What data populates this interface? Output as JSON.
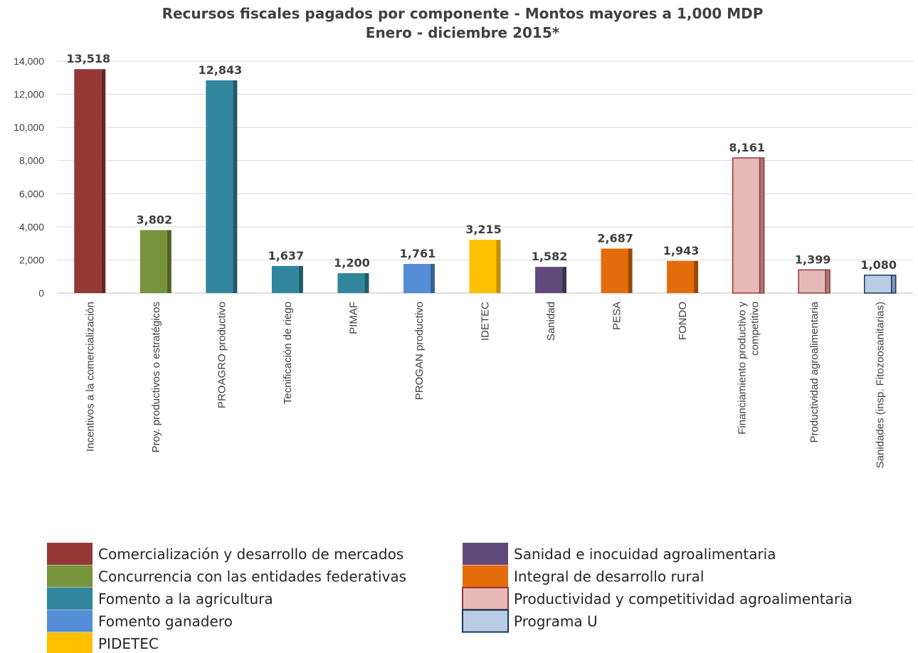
{
  "chart_data": {
    "type": "bar",
    "title": "Recursos fiscales pagados por componente - Montos mayores a 1,000 MDP",
    "subtitle": "Enero - diciembre 2015*",
    "ylim": [
      0,
      14000
    ],
    "yticks": [
      "0",
      "2,000",
      "4,000",
      "6,000",
      "8,000",
      "10,000",
      "12,000",
      "14,000"
    ],
    "grid": true,
    "legend_position": "bottom",
    "categories": [
      [
        "Incentivos a la comercialización"
      ],
      [
        "Proy. productivos o estratégicos"
      ],
      [
        "PROAGRO productivo"
      ],
      [
        "Tecnificación de riego"
      ],
      [
        "PIMAF"
      ],
      [
        "PROGAN productivo"
      ],
      [
        "IDETEC"
      ],
      [
        "Sanidad"
      ],
      [
        "PESA"
      ],
      [
        "FONDO"
      ],
      [
        "Financiamiento productivo y",
        "competitivo"
      ],
      [
        "Productividad agroalimentaria"
      ],
      [
        "Sanidades (insp. Fitozoosanitarias)"
      ]
    ],
    "values": [
      13518,
      3802,
      12843,
      1637,
      1200,
      1761,
      3215,
      1582,
      2687,
      1943,
      8161,
      1399,
      1080
    ],
    "value_labels": [
      "13,518",
      "3,802",
      "12,843",
      "1,637",
      "1,200",
      "1,761",
      "3,215",
      "1,582",
      "2,687",
      "1,943",
      "8,161",
      "1,399",
      "1,080"
    ],
    "bar_group": [
      0,
      1,
      2,
      2,
      2,
      3,
      4,
      5,
      6,
      6,
      7,
      7,
      8
    ],
    "groups": [
      {
        "name": "Comercialización y desarrollo de mercados",
        "color": "#953735",
        "side": "#6B2523",
        "stroke": "none"
      },
      {
        "name": "Concurrencia con las entidades federativas",
        "color": "#77933C",
        "side": "#4F6228",
        "stroke": "none"
      },
      {
        "name": "Fomento a la agricultura",
        "color": "#31859C",
        "side": "#215968",
        "stroke": "none"
      },
      {
        "name": "Fomento ganadero",
        "color": "#558ED5",
        "side": "#376092",
        "stroke": "none"
      },
      {
        "name": "PIDETEC",
        "color": "#FFC000",
        "side": "#BF9000",
        "stroke": "none"
      },
      {
        "name": "Sanidad e inocuidad agroalimentaria",
        "color": "#604A7B",
        "side": "#403151",
        "stroke": "none"
      },
      {
        "name": "Integral de desarrollo rural",
        "color": "#E46C0A",
        "side": "#984807",
        "stroke": "none"
      },
      {
        "name": "Productividad y competitividad agroalimentaria",
        "color": "#E6B9B8",
        "side": "#A37C7B",
        "stroke": "#953735"
      },
      {
        "name": "Programa U",
        "color": "#B9CDE5",
        "side": "#7F95B0",
        "stroke": "#17375E"
      }
    ]
  }
}
